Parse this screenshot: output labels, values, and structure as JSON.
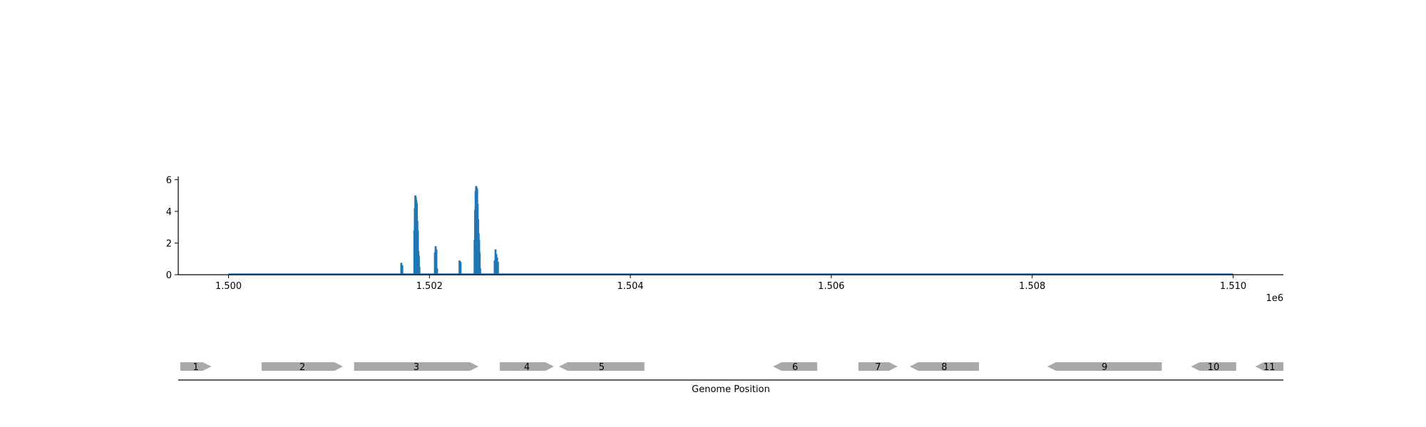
{
  "chart_data": [
    {
      "type": "bar",
      "title": "",
      "xlabel": "",
      "ylabel": "",
      "xlim": [
        1499500,
        1510500
      ],
      "ylim": [
        0,
        6.2
      ],
      "x_ticks": [
        1500000,
        1502000,
        1504000,
        1506000,
        1508000,
        1510000
      ],
      "x_tick_labels": [
        "1.500",
        "1.502",
        "1.504",
        "1.506",
        "1.508",
        "1.510"
      ],
      "x_offset_label": "1e6",
      "y_ticks": [
        0,
        2,
        4,
        6
      ],
      "y_tick_labels": [
        "0",
        "2",
        "4",
        "6"
      ],
      "baseline": {
        "x_start": 1500000,
        "x_end": 1510000,
        "value": 0.02
      },
      "grid": false,
      "color": "#1f77b4",
      "series": [
        {
          "x": [
            1501720,
            1501730,
            1501850,
            1501855,
            1501860,
            1501865,
            1501870,
            1501875,
            1501880,
            1501885,
            1501890,
            1501895,
            1501900,
            1502055,
            1502062,
            1502069,
            1502076,
            1502300,
            1502310,
            1502450,
            1502455,
            1502460,
            1502465,
            1502470,
            1502475,
            1502480,
            1502485,
            1502490,
            1502495,
            1502500,
            1502505,
            1502650,
            1502658,
            1502666,
            1502674,
            1502682
          ],
          "values": [
            0.75,
            0.6,
            2.8,
            4.2,
            5.0,
            4.9,
            4.7,
            4.5,
            3.4,
            2.8,
            1.5,
            1.2,
            0.5,
            1.4,
            1.8,
            1.6,
            0.4,
            0.9,
            0.8,
            2.2,
            4.1,
            5.3,
            5.6,
            5.5,
            5.4,
            4.5,
            3.5,
            2.6,
            2.2,
            1.4,
            0.4,
            0.9,
            1.6,
            1.3,
            1.1,
            0.8
          ]
        }
      ]
    },
    {
      "type": "gene-map",
      "xlabel": "Genome Position",
      "color": "#a9a9a9",
      "genes": [
        {
          "label": "1",
          "start": 1499520,
          "end": 1499830,
          "strand": "+"
        },
        {
          "label": "2",
          "start": 1500330,
          "end": 1501140,
          "strand": "+"
        },
        {
          "label": "3",
          "start": 1501250,
          "end": 1502490,
          "strand": "+"
        },
        {
          "label": "4",
          "start": 1502700,
          "end": 1503240,
          "strand": "+"
        },
        {
          "label": "5",
          "start": 1503290,
          "end": 1504140,
          "strand": "-"
        },
        {
          "label": "6",
          "start": 1505420,
          "end": 1505860,
          "strand": "-"
        },
        {
          "label": "7",
          "start": 1506270,
          "end": 1506660,
          "strand": "+"
        },
        {
          "label": "8",
          "start": 1506780,
          "end": 1507470,
          "strand": "-"
        },
        {
          "label": "9",
          "start": 1508150,
          "end": 1509290,
          "strand": "-"
        },
        {
          "label": "10",
          "start": 1509580,
          "end": 1510030,
          "strand": "-"
        },
        {
          "label": "11",
          "start": 1510220,
          "end": 1510500,
          "strand": "-"
        }
      ]
    }
  ]
}
